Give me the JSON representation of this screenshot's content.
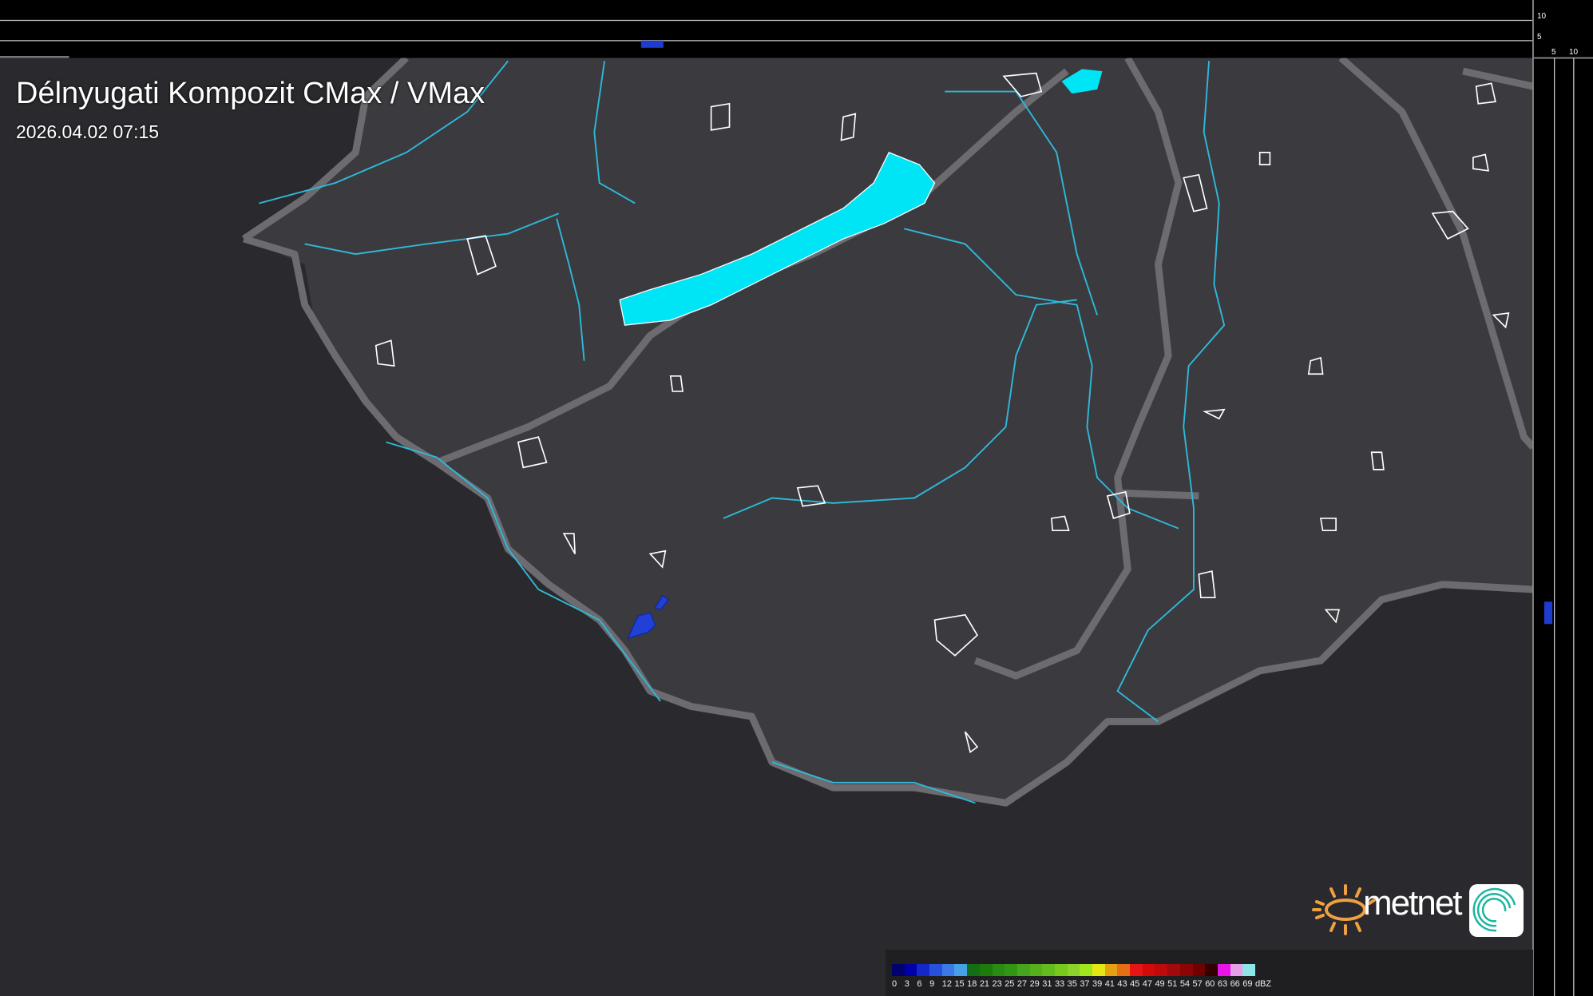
{
  "title": "Délnyugati Kompozit CMax / VMax",
  "timestamp": "2026.04.02 07:15",
  "top_profile": {
    "axis_labels": [
      "10",
      "5"
    ]
  },
  "side_profile": {
    "axis_labels": [
      "5",
      "10"
    ]
  },
  "legend": {
    "unit": "dBZ",
    "labels": [
      "0",
      "3",
      "6",
      "9",
      "12",
      "15",
      "18",
      "21",
      "23",
      "25",
      "27",
      "29",
      "31",
      "33",
      "35",
      "37",
      "39",
      "41",
      "43",
      "45",
      "47",
      "49",
      "51",
      "54",
      "57",
      "60",
      "63",
      "66",
      "69"
    ],
    "colors": [
      "#00006e",
      "#0000a8",
      "#1428c8",
      "#2850dc",
      "#3c78e6",
      "#46a0e6",
      "#146e14",
      "#1e7a0a",
      "#288c14",
      "#329614",
      "#46a51e",
      "#55b01e",
      "#64bb1e",
      "#78c81e",
      "#8cd228",
      "#a0e61e",
      "#e6e614",
      "#e6a014",
      "#e66e14",
      "#e61414",
      "#d20a0a",
      "#be0a0a",
      "#a00a0a",
      "#8c0505",
      "#6e0000",
      "#320000",
      "#e614e6",
      "#e6a0e6",
      "#8ce6e6"
    ]
  },
  "logo": {
    "text": "metnet"
  },
  "colors": {
    "water": "#00e5f5",
    "river": "#2fb8d8",
    "border": "#6b6b70",
    "echo": "#1e3cd0"
  }
}
